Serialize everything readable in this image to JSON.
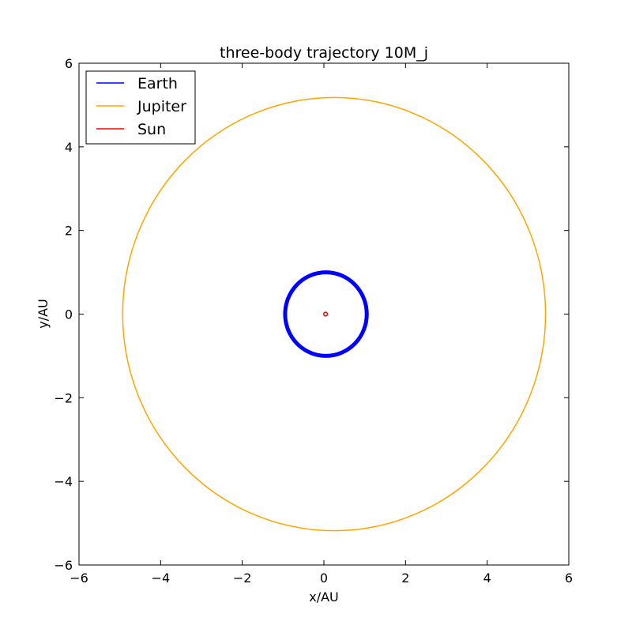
{
  "chart_data": {
    "type": "line",
    "title": "three-body trajectory 10M_j",
    "xlabel": "x/AU",
    "ylabel": "y/AU",
    "xlim": [
      -6,
      6
    ],
    "ylim": [
      -6,
      6
    ],
    "xticks": [
      -6,
      -4,
      -2,
      0,
      2,
      4,
      6
    ],
    "yticks": [
      -6,
      -4,
      -2,
      0,
      2,
      4,
      6
    ],
    "xtick_labels": [
      "−6",
      "−4",
      "−2",
      "0",
      "2",
      "4",
      "6"
    ],
    "ytick_labels": [
      "−6",
      "−4",
      "−2",
      "0",
      "2",
      "4",
      "6"
    ],
    "grid": false,
    "legend_position": "top-left",
    "series": [
      {
        "name": "Earth",
        "color": "#0000ff",
        "shape": "circle",
        "center": [
          0.05,
          0.0
        ],
        "radius": 1.0,
        "thick": true
      },
      {
        "name": "Jupiter",
        "color": "#ffa500",
        "shape": "ellipse",
        "center": [
          0.25,
          0.0
        ],
        "rx": 5.18,
        "ry": 5.18,
        "thick": false
      },
      {
        "name": "Sun",
        "color": "#ff0000",
        "shape": "circle",
        "center": [
          0.04,
          0.0
        ],
        "radius": 0.045,
        "thick": false
      }
    ]
  }
}
